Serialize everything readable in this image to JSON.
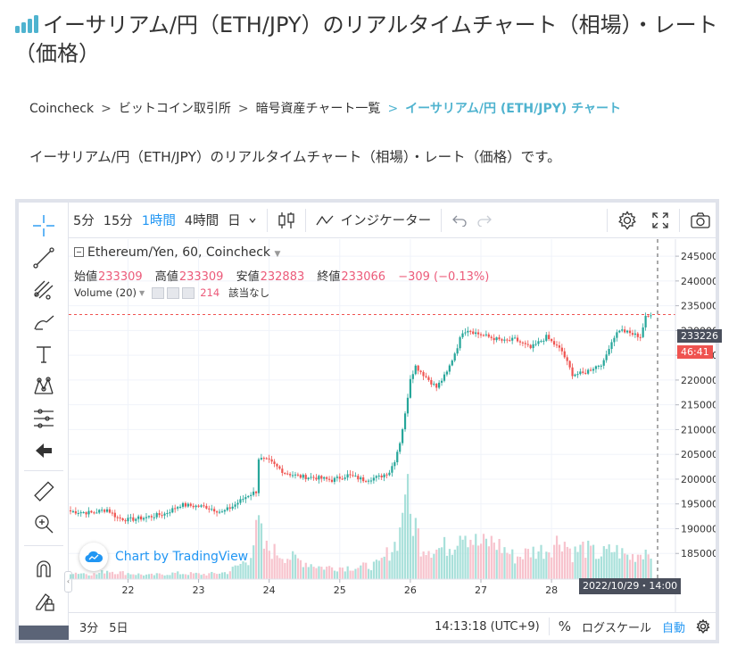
{
  "page": {
    "title": "イーサリアム/円（ETH/JPY）のリアルタイムチャート（相場）・レート（価格）",
    "breadcrumb": [
      {
        "label": "Coincheck"
      },
      {
        "label": "ビットコイン取引所"
      },
      {
        "label": "暗号資産チャート一覧"
      },
      {
        "label": "イーサリアム/円 (ETH/JPY) チャート"
      }
    ],
    "breadcrumb_sep": ">",
    "intro": "イーサリアム/円（ETH/JPY）のリアルタイムチャート（相場）・レート（価格）です。"
  },
  "toolbar": {
    "intervals": [
      "5分",
      "15分",
      "1時間",
      "4時間",
      "日"
    ],
    "active_interval": "1時間",
    "indicators_label": "インジケーター"
  },
  "legend": {
    "symbol": "Ethereum/Yen, 60, Coincheck",
    "open_label": "始値",
    "open": "233309",
    "high_label": "高値",
    "high": "233309",
    "low_label": "安値",
    "low": "232883",
    "close_label": "終値",
    "close": "233066",
    "change": "−309 (−0.13%)",
    "volume_label": "Volume (20)",
    "volume_value": "214",
    "volume_extra": "該当なし"
  },
  "branding": {
    "tradingview": "Chart by TradingView"
  },
  "price_tags": {
    "last_price": "233226",
    "countdown": "46:41"
  },
  "crosshair_time": "2022/10/29・14:00",
  "bottombar": {
    "ranges": [
      "3分",
      "5日"
    ],
    "clock": "14:13:18 (UTC+9)",
    "percent": "%",
    "log_scale": "ログスケール",
    "auto": "自動"
  },
  "colors": {
    "up": "#26a69a",
    "down": "#ef5350",
    "accent": "#2196f3",
    "breadcrumb_current": "#4fb3cf"
  },
  "chart_data": {
    "type": "candlestick",
    "x_ticks": [
      "22",
      "23",
      "24",
      "25",
      "26",
      "27",
      "28"
    ],
    "y_ticks": [
      245000,
      240000,
      235000,
      230000,
      225000,
      220000,
      215000,
      210000,
      205000,
      200000,
      195000,
      190000,
      185000
    ],
    "ylim": [
      180000,
      247000
    ],
    "last_price": 233226,
    "anchors": [
      [
        0,
        193500
      ],
      [
        8,
        193200
      ],
      [
        14,
        193900
      ],
      [
        18,
        192200
      ],
      [
        22,
        191800
      ],
      [
        28,
        192200
      ],
      [
        36,
        193000
      ],
      [
        42,
        194800
      ],
      [
        52,
        194400
      ],
      [
        58,
        193300
      ],
      [
        62,
        194500
      ],
      [
        68,
        196800
      ],
      [
        71,
        197500
      ],
      [
        72,
        204200
      ],
      [
        76,
        203600
      ],
      [
        82,
        201300
      ],
      [
        88,
        200500
      ],
      [
        94,
        200300
      ],
      [
        100,
        199800
      ],
      [
        106,
        200800
      ],
      [
        112,
        199900
      ],
      [
        118,
        200400
      ],
      [
        122,
        201500
      ],
      [
        124,
        203800
      ],
      [
        126,
        207500
      ],
      [
        128,
        213000
      ],
      [
        130,
        220500
      ],
      [
        132,
        222800
      ],
      [
        136,
        220600
      ],
      [
        140,
        218500
      ],
      [
        144,
        221500
      ],
      [
        148,
        226800
      ],
      [
        150,
        229800
      ],
      [
        152,
        230200
      ],
      [
        156,
        229300
      ],
      [
        160,
        228700
      ],
      [
        166,
        227800
      ],
      [
        170,
        228200
      ],
      [
        176,
        226400
      ],
      [
        182,
        228700
      ],
      [
        188,
        225800
      ],
      [
        192,
        221200
      ],
      [
        196,
        221300
      ],
      [
        200,
        222500
      ],
      [
        204,
        223600
      ],
      [
        206,
        226700
      ],
      [
        208,
        228800
      ],
      [
        210,
        230200
      ],
      [
        214,
        229400
      ],
      [
        218,
        228800
      ],
      [
        220,
        232600
      ],
      [
        222,
        233066
      ]
    ],
    "volume_peaks": [
      [
        0,
        0.07
      ],
      [
        10,
        0.05
      ],
      [
        14,
        0.09
      ],
      [
        18,
        0.07
      ],
      [
        30,
        0.04
      ],
      [
        40,
        0.06
      ],
      [
        52,
        0.05
      ],
      [
        60,
        0.07
      ],
      [
        68,
        0.2
      ],
      [
        72,
        0.55
      ],
      [
        74,
        0.32
      ],
      [
        84,
        0.22
      ],
      [
        96,
        0.12
      ],
      [
        110,
        0.12
      ],
      [
        118,
        0.15
      ],
      [
        124,
        0.35
      ],
      [
        126,
        0.48
      ],
      [
        128,
        1.0
      ],
      [
        130,
        0.62
      ],
      [
        132,
        0.55
      ],
      [
        134,
        0.35
      ],
      [
        140,
        0.3
      ],
      [
        146,
        0.35
      ],
      [
        150,
        0.55
      ],
      [
        152,
        0.45
      ],
      [
        156,
        0.35
      ],
      [
        162,
        0.38
      ],
      [
        170,
        0.22
      ],
      [
        176,
        0.28
      ],
      [
        182,
        0.3
      ],
      [
        188,
        0.42
      ],
      [
        192,
        0.26
      ],
      [
        196,
        0.32
      ],
      [
        202,
        0.24
      ],
      [
        208,
        0.3
      ],
      [
        214,
        0.22
      ],
      [
        222,
        0.32
      ]
    ]
  }
}
